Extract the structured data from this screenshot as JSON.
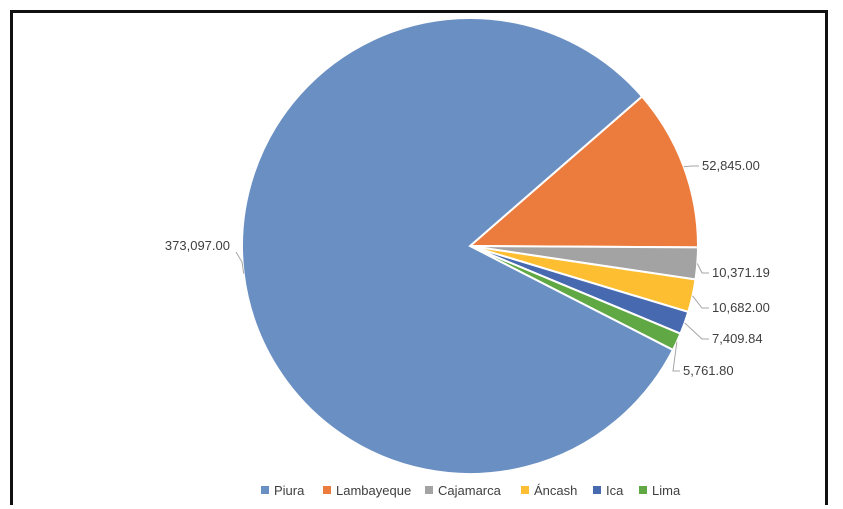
{
  "chart_data": {
    "type": "pie",
    "categories": [
      "Piura",
      "Lambayeque",
      "Cajamarca",
      "Áncash",
      "Ica",
      "Lima"
    ],
    "values": [
      373097.0,
      52845.0,
      10371.19,
      10682.0,
      7409.84,
      5761.8
    ],
    "data_labels": [
      "373,097.00",
      "52,845.00",
      "10,371.19",
      "10,682.00",
      "7,409.84",
      "5,761.80"
    ],
    "colors": [
      "#6A8FC3",
      "#EC7C3E",
      "#A3A3A3",
      "#FDBE31",
      "#4769B0",
      "#5FA844"
    ],
    "legend_position": "bottom"
  }
}
